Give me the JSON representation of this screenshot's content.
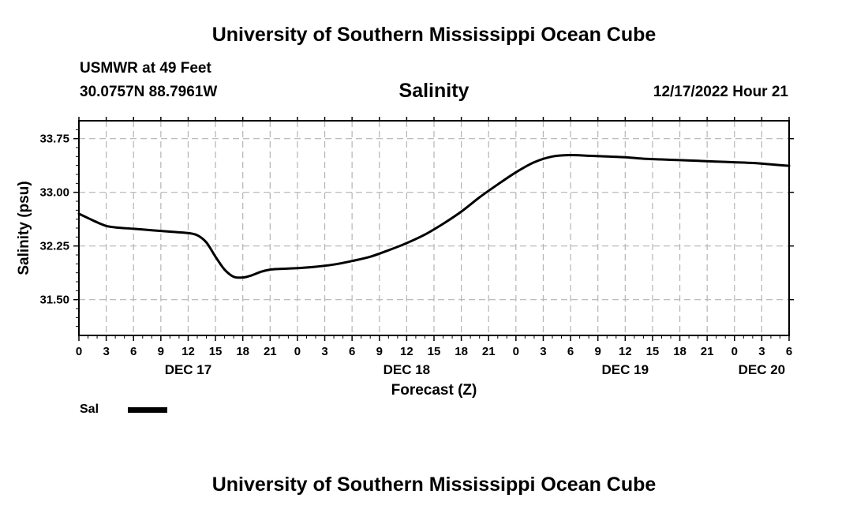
{
  "header": {
    "title": "University of Southern Mississippi Ocean Cube",
    "station": "USMWR at 49 Feet",
    "coords": "30.0757N  88.7961W",
    "variable": "Salinity",
    "datetime": "12/17/2022 Hour 21"
  },
  "footer": {
    "title": "University of Southern Mississippi Ocean Cube"
  },
  "legend": {
    "label": "Sal"
  },
  "colors": {
    "line": "#000000",
    "grid": "#b4b4b4",
    "background": "#ffffff"
  },
  "chart_data": {
    "type": "line",
    "title": "Salinity",
    "xlabel": "Forecast (Z)",
    "ylabel": "Salinity (psu)",
    "xlim": [
      0,
      78
    ],
    "ylim": [
      31.0,
      34.0
    ],
    "x_tick_labels": [
      "0",
      "3",
      "6",
      "9",
      "12",
      "15",
      "18",
      "21",
      "0",
      "3",
      "6",
      "9",
      "12",
      "15",
      "18",
      "21",
      "0",
      "3",
      "6",
      "9",
      "12",
      "15",
      "18",
      "21",
      "0",
      "3",
      "6"
    ],
    "y_ticks": [
      31.5,
      32.25,
      33.0,
      33.75
    ],
    "y_tick_labels": [
      "31.50",
      "32.25",
      "33.00",
      "33.75"
    ],
    "date_labels": [
      {
        "label": "DEC 17",
        "x": 12
      },
      {
        "label": "DEC 18",
        "x": 36
      },
      {
        "label": "DEC 19",
        "x": 60
      },
      {
        "label": "DEC 20",
        "x": 75
      }
    ],
    "grid": true,
    "series": [
      {
        "name": "Sal",
        "x": [
          0,
          1,
          2,
          3,
          4,
          6,
          8,
          10,
          12,
          13,
          14,
          15,
          16,
          17,
          18,
          19,
          20,
          21,
          22,
          24,
          26,
          28,
          30,
          32,
          34,
          36,
          38,
          40,
          42,
          44,
          46,
          48,
          50,
          52,
          54,
          56,
          58,
          60,
          62,
          64,
          66,
          68,
          70,
          72,
          74,
          76,
          78
        ],
        "values": [
          32.7,
          32.64,
          32.58,
          32.53,
          32.51,
          32.49,
          32.47,
          32.45,
          32.43,
          32.4,
          32.3,
          32.1,
          31.92,
          31.82,
          31.81,
          31.84,
          31.89,
          31.92,
          31.93,
          31.94,
          31.96,
          31.99,
          32.04,
          32.1,
          32.19,
          32.29,
          32.41,
          32.56,
          32.73,
          32.93,
          33.11,
          33.28,
          33.42,
          33.5,
          33.52,
          33.51,
          33.5,
          33.49,
          33.47,
          33.46,
          33.45,
          33.44,
          33.43,
          33.42,
          33.41,
          33.39,
          33.37
        ]
      }
    ]
  }
}
